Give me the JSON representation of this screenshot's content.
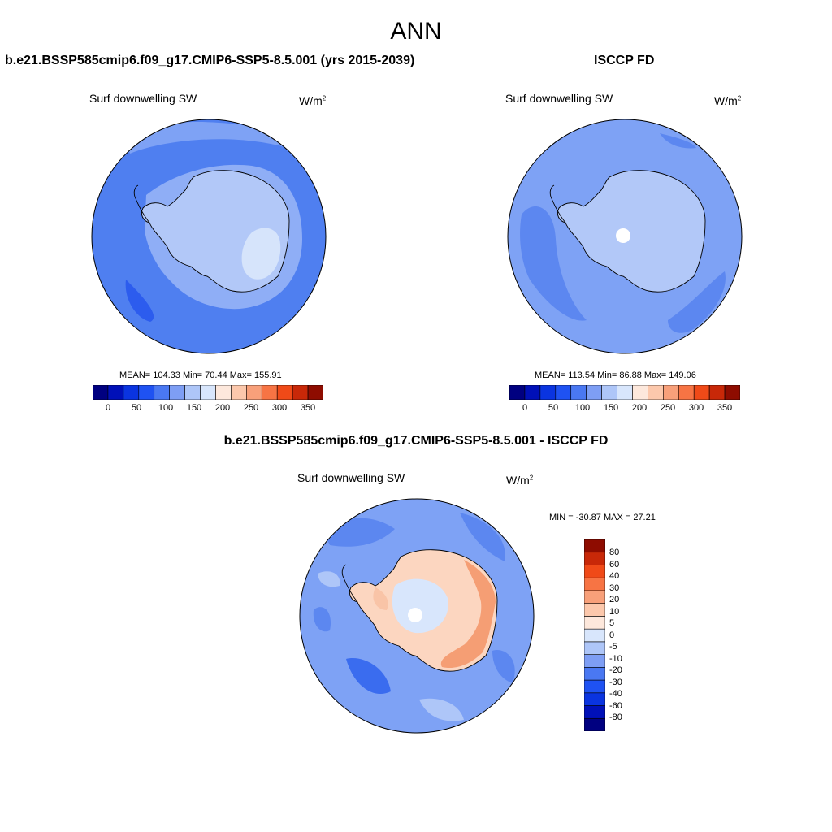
{
  "season": "ANN",
  "panels": [
    {
      "case_title": "b.e21.BSSP585cmip6.f09_g17.CMIP6-SSP5-8.5.001 (yrs 2015-2039)",
      "variable": "Surf downwelling SW",
      "units_base": "W/m",
      "units_exp": "2",
      "stats": "MEAN= 104.33  Min=  70.44  Max= 155.91"
    },
    {
      "case_title": "ISCCP FD",
      "variable": "Surf downwelling SW",
      "units_base": "W/m",
      "units_exp": "2",
      "stats": "MEAN= 113.54  Min=  86.88  Max= 149.06"
    },
    {
      "case_title": "b.e21.BSSP585cmip6.f09_g17.CMIP6-SSP5-8.5.001 - ISCCP FD",
      "variable": "Surf downwelling SW",
      "units_base": "W/m",
      "units_exp": "2",
      "stats": "MIN = -30.87 MAX =  27.21"
    }
  ],
  "colorbar_abs": {
    "colors": [
      "#000080",
      "#0010b8",
      "#0a34e0",
      "#1f52f2",
      "#4a78f2",
      "#7e9ef4",
      "#aec6f8",
      "#d8e6fc",
      "#fde8dc",
      "#fcc8ac",
      "#f8a07a",
      "#f77444",
      "#f04a18",
      "#c82808",
      "#8e0c00"
    ],
    "labels": [
      "0",
      "50",
      "100",
      "150",
      "200",
      "250",
      "300",
      "350"
    ]
  },
  "colorbar_diff": {
    "colors": [
      "#000080",
      "#0010b8",
      "#0a34e0",
      "#1f52f2",
      "#4a78f2",
      "#7e9ef4",
      "#aec6f8",
      "#d8e6fc",
      "#fde8dc",
      "#fcc8ac",
      "#f8a07a",
      "#f77444",
      "#f04a18",
      "#c82808",
      "#8e0c00"
    ],
    "labels": [
      "-80",
      "-60",
      "-40",
      "-30",
      "-20",
      "-10",
      "-5",
      "0",
      "5",
      "10",
      "20",
      "30",
      "40",
      "60",
      "80"
    ]
  },
  "palette": {
    "ocean_mid": "#5c87f0",
    "ocean_dark": "#3a6cef",
    "ocean_light": "#7fa3f4",
    "land_pale": "#b4c9f8",
    "land_lighter": "#d7e4fb",
    "warm1": "#fde3d4",
    "warm2": "#f9c4a7",
    "warm3": "#f59e74",
    "missing": "#ffffff"
  }
}
